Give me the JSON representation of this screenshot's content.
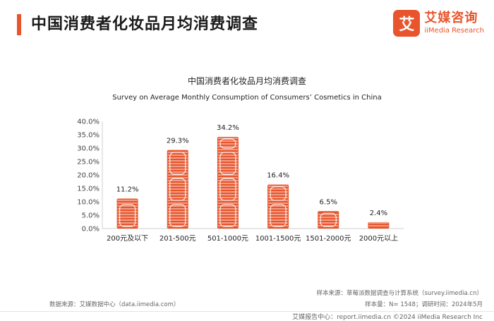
{
  "header": {
    "title": "中国消费者化妆品月均消费调查",
    "logo_mark": "艾",
    "logo_cn": "艾媒咨询",
    "logo_en": "iiMedia Research"
  },
  "chart_data": {
    "type": "bar",
    "title": "中国消费者化妆品月均消费调查",
    "subtitle": "Survey on Average Monthly Consumption of Consumers’ Cosmetics in China",
    "categories": [
      "200元及以下",
      "201-500元",
      "501-1000元",
      "1001-1500元",
      "1501-2000元",
      "2000元以上"
    ],
    "values": [
      11.2,
      29.3,
      34.2,
      16.4,
      6.5,
      2.4
    ],
    "data_labels": [
      "11.2%",
      "29.3%",
      "34.2%",
      "16.4%",
      "6.5%",
      "2.4%"
    ],
    "yticks": [
      "0.0%",
      "5.0%",
      "10.0%",
      "15.0%",
      "20.0%",
      "25.0%",
      "30.0%",
      "35.0%",
      "40.0%"
    ],
    "ylim": [
      0,
      40
    ],
    "xlabel": "",
    "ylabel": "",
    "grid": false,
    "color": "#e8552c"
  },
  "sources": {
    "left": "数据来源：艾媒数据中心（data.iimedia.com）",
    "right_line1": "样本来源：草莓派数据调查与计算系统（survey.iimedia.cn）",
    "right_line2": "样本量：N= 1548；调研时间：2024年5月"
  },
  "footer": {
    "text": "艾媒报告中心：report.iimedia.cn    ©2024  iiMedia Research  Inc"
  }
}
